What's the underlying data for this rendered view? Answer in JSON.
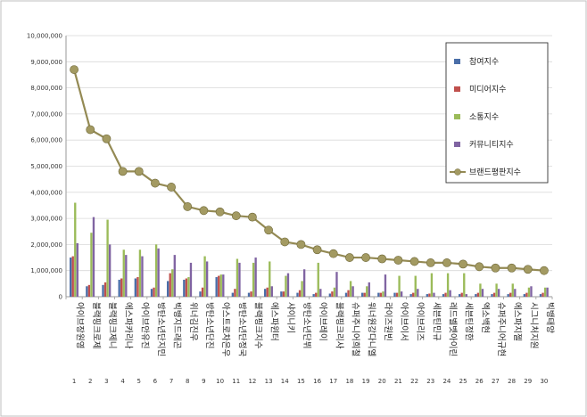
{
  "chart_data": {
    "type": "bar",
    "ylim": [
      0,
      10000000
    ],
    "y_ticks": [
      "0",
      "1,000,000",
      "2,000,000",
      "3,000,000",
      "4,000,000",
      "5,000,000",
      "6,000,000",
      "7,000,000",
      "8,000,000",
      "9,000,000",
      "10,000,000"
    ],
    "grid": true,
    "legend_position": "right",
    "ranks": [
      "1",
      "2",
      "3",
      "4",
      "5",
      "6",
      "7",
      "8",
      "9",
      "10",
      "11",
      "12",
      "13",
      "14",
      "15",
      "16",
      "17",
      "18",
      "19",
      "20",
      "21",
      "22",
      "23",
      "24",
      "25",
      "26",
      "27",
      "28",
      "29",
      "30"
    ],
    "categories": [
      "아이브장원영",
      "블랙핑크로제",
      "블랙핑크제니",
      "에스파카리나",
      "아이브안유진",
      "방탄소년단지민",
      "빅뱅지드래곤",
      "위너김진우",
      "방탄소년단진",
      "아스트로차은우",
      "방탄소년단정국",
      "블랙핑크지수",
      "에스파윈터",
      "샤이니키",
      "방탄소년단뷔",
      "아이브레이",
      "블랙핑크리사",
      "슈퍼주니어희철",
      "워너원강다니엘",
      "라이즈원빈",
      "아이브이서",
      "아이브리즈",
      "세븐틴민규",
      "레드벨벳아이린",
      "세븐틴정한",
      "엑소백현",
      "슈퍼주니어규현",
      "에스파지젤",
      "시그니처지원",
      "빅뱅태양"
    ],
    "series": [
      {
        "name": "참여지수",
        "color": "#4a6ea8",
        "kind": "bar",
        "values": [
          1500000,
          400000,
          450000,
          650000,
          700000,
          300000,
          600000,
          650000,
          200000,
          750000,
          150000,
          150000,
          300000,
          200000,
          150000,
          100000,
          120000,
          150000,
          150000,
          150000,
          150000,
          100000,
          100000,
          100000,
          100000,
          100000,
          100000,
          100000,
          100000,
          100000
        ]
      },
      {
        "name": "미디어지수",
        "color": "#c0504d",
        "kind": "bar",
        "values": [
          1550000,
          450000,
          550000,
          700000,
          750000,
          350000,
          900000,
          700000,
          350000,
          800000,
          300000,
          200000,
          350000,
          200000,
          250000,
          150000,
          200000,
          250000,
          150000,
          150000,
          150000,
          150000,
          120000,
          150000,
          150000,
          150000,
          150000,
          150000,
          150000,
          150000
        ]
      },
      {
        "name": "소통지수",
        "color": "#9bbb59",
        "kind": "bar",
        "values": [
          3600000,
          2450000,
          2950000,
          1800000,
          1800000,
          2000000,
          1050000,
          750000,
          1550000,
          850000,
          1450000,
          1300000,
          1350000,
          800000,
          600000,
          1300000,
          350000,
          600000,
          400000,
          200000,
          800000,
          800000,
          900000,
          900000,
          900000,
          500000,
          500000,
          500000,
          350000,
          350000
        ]
      },
      {
        "name": "커뮤니티지수",
        "color": "#8064a2",
        "kind": "bar",
        "values": [
          2050000,
          3050000,
          2000000,
          1600000,
          1550000,
          1850000,
          1600000,
          1300000,
          1350000,
          850000,
          1300000,
          1500000,
          400000,
          900000,
          1050000,
          300000,
          950000,
          400000,
          550000,
          850000,
          200000,
          300000,
          150000,
          250000,
          100000,
          300000,
          300000,
          300000,
          400000,
          350000
        ]
      },
      {
        "name": "브랜드평판지수",
        "color": "#948a54",
        "kind": "line",
        "values": [
          8700000,
          6400000,
          6050000,
          4800000,
          4800000,
          4350000,
          4200000,
          3450000,
          3300000,
          3250000,
          3100000,
          3050000,
          2550000,
          2100000,
          2000000,
          1800000,
          1650000,
          1500000,
          1500000,
          1450000,
          1400000,
          1350000,
          1300000,
          1300000,
          1250000,
          1150000,
          1100000,
          1100000,
          1050000,
          1000000
        ]
      }
    ]
  }
}
